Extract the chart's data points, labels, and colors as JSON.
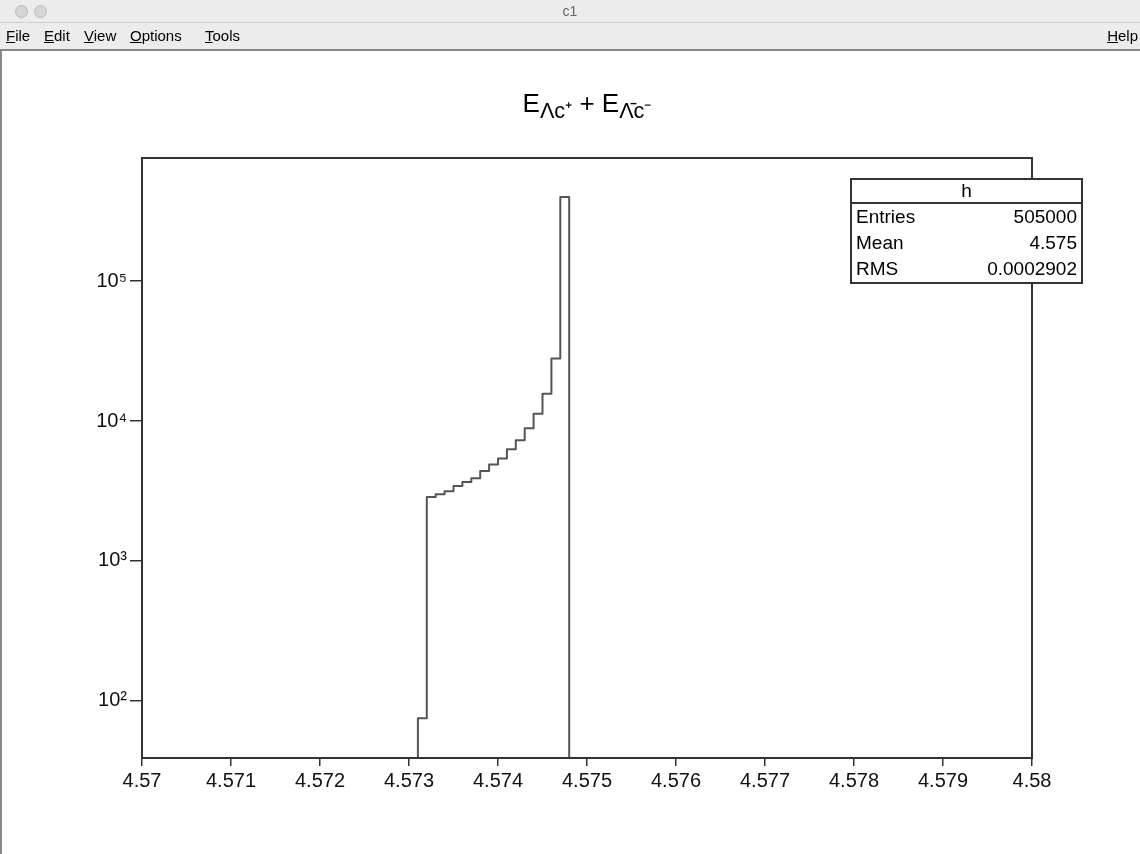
{
  "chart_data": {
    "type": "histogram",
    "title": "E$_{Λc⁺}$ + E$_{Λ̄c⁻}$",
    "bins": [
      4.5731,
      4.5732,
      4.5733,
      4.5734,
      4.5735,
      4.5736,
      4.5737,
      4.5738,
      4.5739,
      4.574,
      4.5741,
      4.5742,
      4.5743,
      4.5744,
      4.5745,
      4.5746,
      4.5747,
      4.5748
    ],
    "values": [
      75,
      2860,
      3000,
      3150,
      3430,
      3660,
      3900,
      4400,
      4900,
      5400,
      6300,
      7300,
      8900,
      11300,
      15700,
      28000,
      400000
    ],
    "color": "#555555",
    "log": "y",
    "grid": false,
    "legend": false,
    "xlim": [
      4.57,
      4.58
    ],
    "xticks": [
      4.57,
      4.571,
      4.572,
      4.573,
      4.574,
      4.575,
      4.576,
      4.577,
      4.578,
      4.579,
      4.58
    ],
    "ylim": [
      39,
      760000
    ],
    "yticks": [
      {
        "value": 100,
        "label": "10²"
      },
      {
        "value": 1000,
        "label": "10³"
      },
      {
        "value": 10000,
        "label": "10⁴"
      },
      {
        "value": 100000,
        "label": "10⁵"
      }
    ],
    "annotations": [
      "c1",
      "File",
      "Edit",
      "View",
      "Options",
      "Tools",
      "Help",
      "h",
      "Entries",
      "505000",
      "Mean",
      "4.575",
      "RMS",
      "0.0002902"
    ]
  }
}
